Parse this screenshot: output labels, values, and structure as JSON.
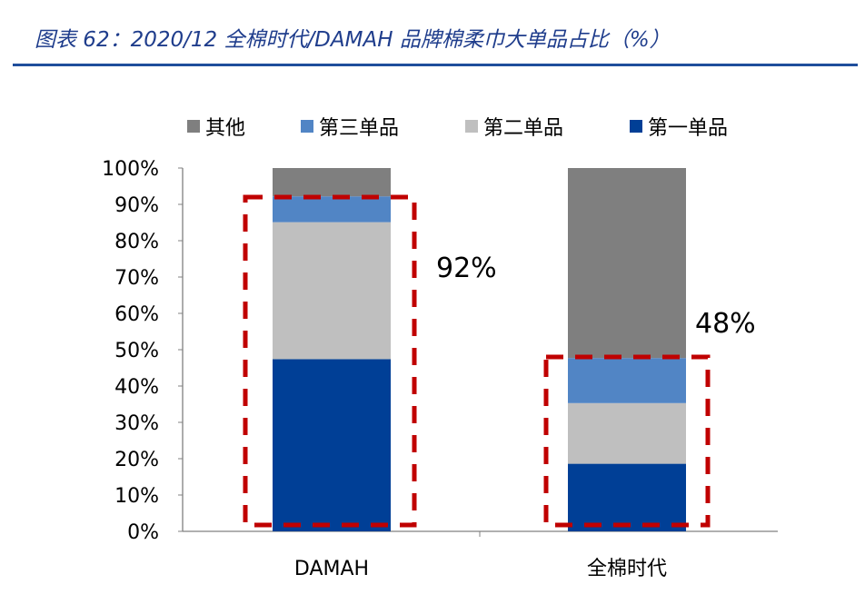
{
  "title": "图表 62：2020/12 全棉时代/DAMAH 品牌棉柔巾大单品占比（%）",
  "chart_data": {
    "type": "bar",
    "stacked": true,
    "title": "",
    "categories": [
      "DAMAH",
      "全棉时代"
    ],
    "series": [
      {
        "name": "第一单品",
        "values": [
          47.4,
          18.6
        ],
        "color": "#003f96"
      },
      {
        "name": "第二单品",
        "values": [
          37.7,
          16.7
        ],
        "color": "#bfbfbf"
      },
      {
        "name": "第三单品",
        "values": [
          7.1,
          12.4
        ],
        "color": "#5185c5"
      },
      {
        "name": "其他",
        "values": [
          7.8,
          52.3
        ],
        "color": "#7f7f7f"
      }
    ],
    "legend_order": [
      "其他",
      "第三单品",
      "第二单品",
      "第一单品"
    ],
    "legend_position": "top",
    "ylim": [
      0,
      100
    ],
    "yticks": [
      "0%",
      "10%",
      "20%",
      "30%",
      "40%",
      "50%",
      "60%",
      "70%",
      "80%",
      "90%",
      "100%"
    ],
    "annotations": [
      {
        "category": "DAMAH",
        "text": "92%",
        "value": 92
      },
      {
        "category": "全棉时代",
        "text": "48%",
        "value": 48
      }
    ],
    "highlight_color": "#c00000",
    "grid": false
  }
}
